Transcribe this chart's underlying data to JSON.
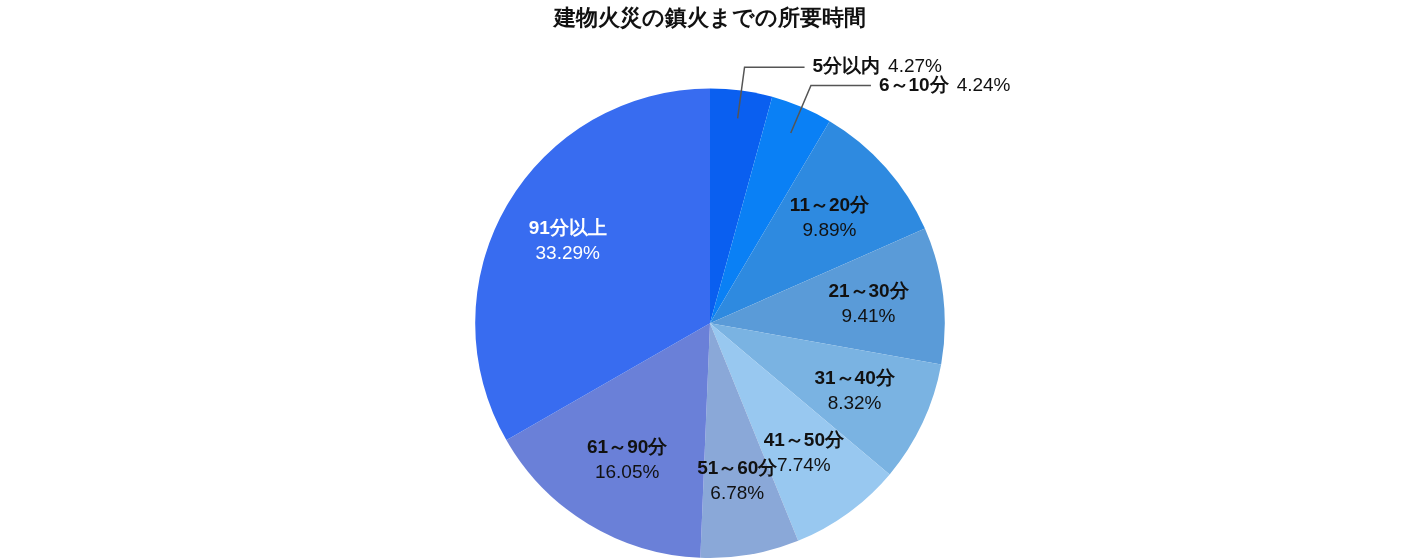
{
  "chart_data": {
    "type": "pie",
    "title": "建物火災の鎮火までの所要時間",
    "categories": [
      "5分以内",
      "6～10分",
      "11～20分",
      "21～30分",
      "31～40分",
      "41～50分",
      "51～60分",
      "61～90分",
      "91分以上"
    ],
    "values": [
      4.27,
      4.24,
      9.89,
      9.41,
      8.32,
      7.74,
      6.78,
      16.05,
      33.29
    ],
    "value_labels": [
      "4.27%",
      "4.24%",
      "9.89%",
      "9.41%",
      "8.32%",
      "7.74%",
      "6.78%",
      "16.05%",
      "33.29%"
    ],
    "colors": [
      "#0a5ff0",
      "#0a80f5",
      "#2e8ae0",
      "#5a9bd8",
      "#7ab3e2",
      "#98c8f0",
      "#8aa8d8",
      "#6a80d8",
      "#386cf0"
    ],
    "legend": false
  }
}
